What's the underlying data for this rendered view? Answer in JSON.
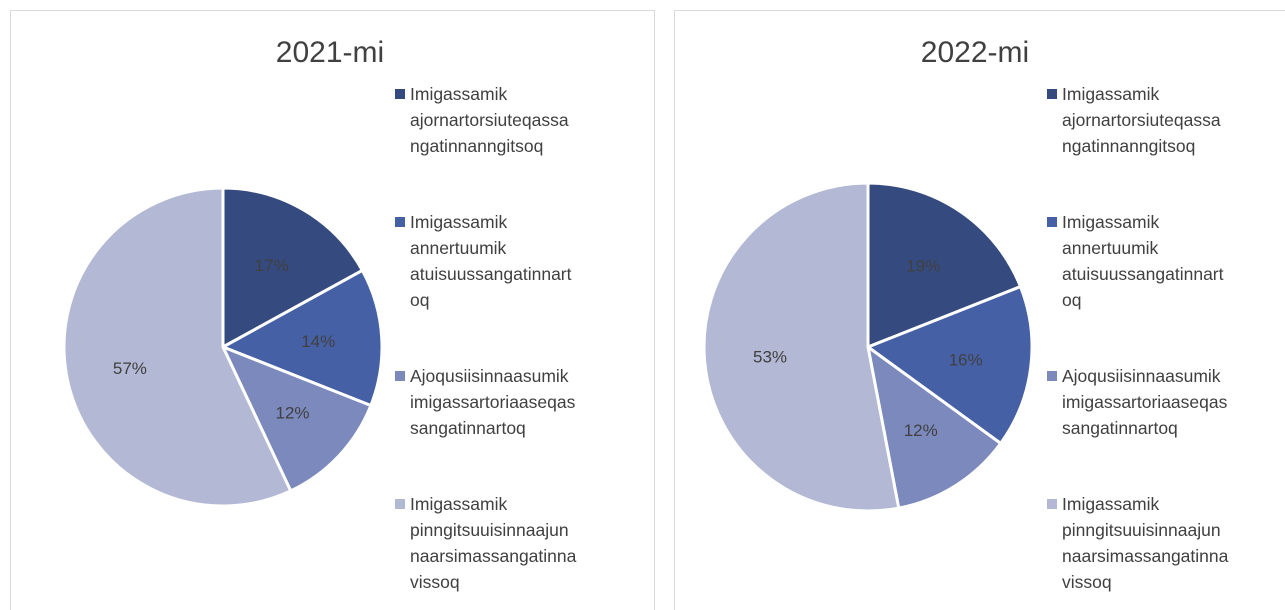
{
  "chart_data": [
    {
      "type": "pie",
      "title": "2021-mi",
      "categories": [
        "Imigassamik ajornartorsiuteqassangatinnanngitsoq",
        "Imigassamik annertuumik atuisuussangatinnartoq",
        "Ajoqusiisinnaasumik imigassartoriaaseqassangatinnartoq",
        "Imigassamik pinngitsuuisinnaajunnaarsimassangatinnavissoq"
      ],
      "values": [
        17,
        14,
        12,
        57
      ],
      "value_labels": [
        "17%",
        "14%",
        "12%",
        "57%"
      ],
      "colors": [
        "#354b80",
        "#4660a6",
        "#7b89bd",
        "#b3b8d5"
      ],
      "legend": "right"
    },
    {
      "type": "pie",
      "title": "2022-mi",
      "categories": [
        "Imigassamik ajornartorsiuteqassangatinnanngitsoq",
        "Imigassamik annertuumik atuisuussangatinnartoq",
        "Ajoqusiisinnaasumik imigassartoriaaseqassangatinnartoq",
        "Imigassamik pinngitsuuisinnaajunnaarsimassangatinnavissoq"
      ],
      "values": [
        19,
        16,
        12,
        53
      ],
      "value_labels": [
        "19%",
        "16%",
        "12%",
        "53%"
      ],
      "colors": [
        "#354b80",
        "#4660a6",
        "#7b89bd",
        "#b3b8d5"
      ],
      "legend": "right"
    }
  ]
}
